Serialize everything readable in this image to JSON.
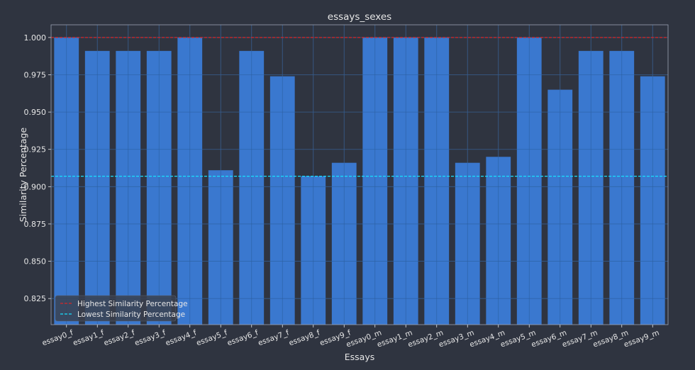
{
  "chart_data": {
    "type": "bar",
    "title": "essays_sexes",
    "xlabel": "Essays",
    "ylabel": "Similarity Percentage",
    "categories": [
      "essay0_f",
      "essay1_f",
      "essay2_f",
      "essay3_f",
      "essay4_f",
      "essay5_f",
      "essay6_f",
      "essay7_f",
      "essay8_f",
      "essay9_f",
      "essay0_m",
      "essay1_m",
      "essay2_m",
      "essay3_m",
      "essay4_m",
      "essay5_m",
      "essay6_m",
      "essay7_m",
      "essay8_m",
      "essay9_m"
    ],
    "values": [
      1.0,
      0.991,
      0.991,
      0.991,
      1.0,
      0.911,
      0.991,
      0.974,
      0.907,
      0.916,
      1.0,
      1.0,
      1.0,
      0.916,
      0.92,
      1.0,
      0.965,
      0.991,
      0.991,
      0.974
    ],
    "ylim": [
      0.8075,
      1.0085
    ],
    "yticks": [
      "0.825",
      "0.850",
      "0.875",
      "0.900",
      "0.925",
      "0.950",
      "0.975",
      "1.000"
    ],
    "grid": true,
    "legend_position": "lower-left",
    "reference_lines": [
      {
        "name": "Highest Similarity Percentage",
        "value": 1.0,
        "color": "#d62728",
        "style": "dashed"
      },
      {
        "name": "Lowest Similarity Percentage",
        "value": 0.907,
        "color": "#17e0ff",
        "style": "dashed"
      }
    ],
    "colors": {
      "bar": "#3a78cf",
      "background": "#2f3440",
      "text": "#e6e6e6",
      "grid": "#4a5160"
    }
  }
}
